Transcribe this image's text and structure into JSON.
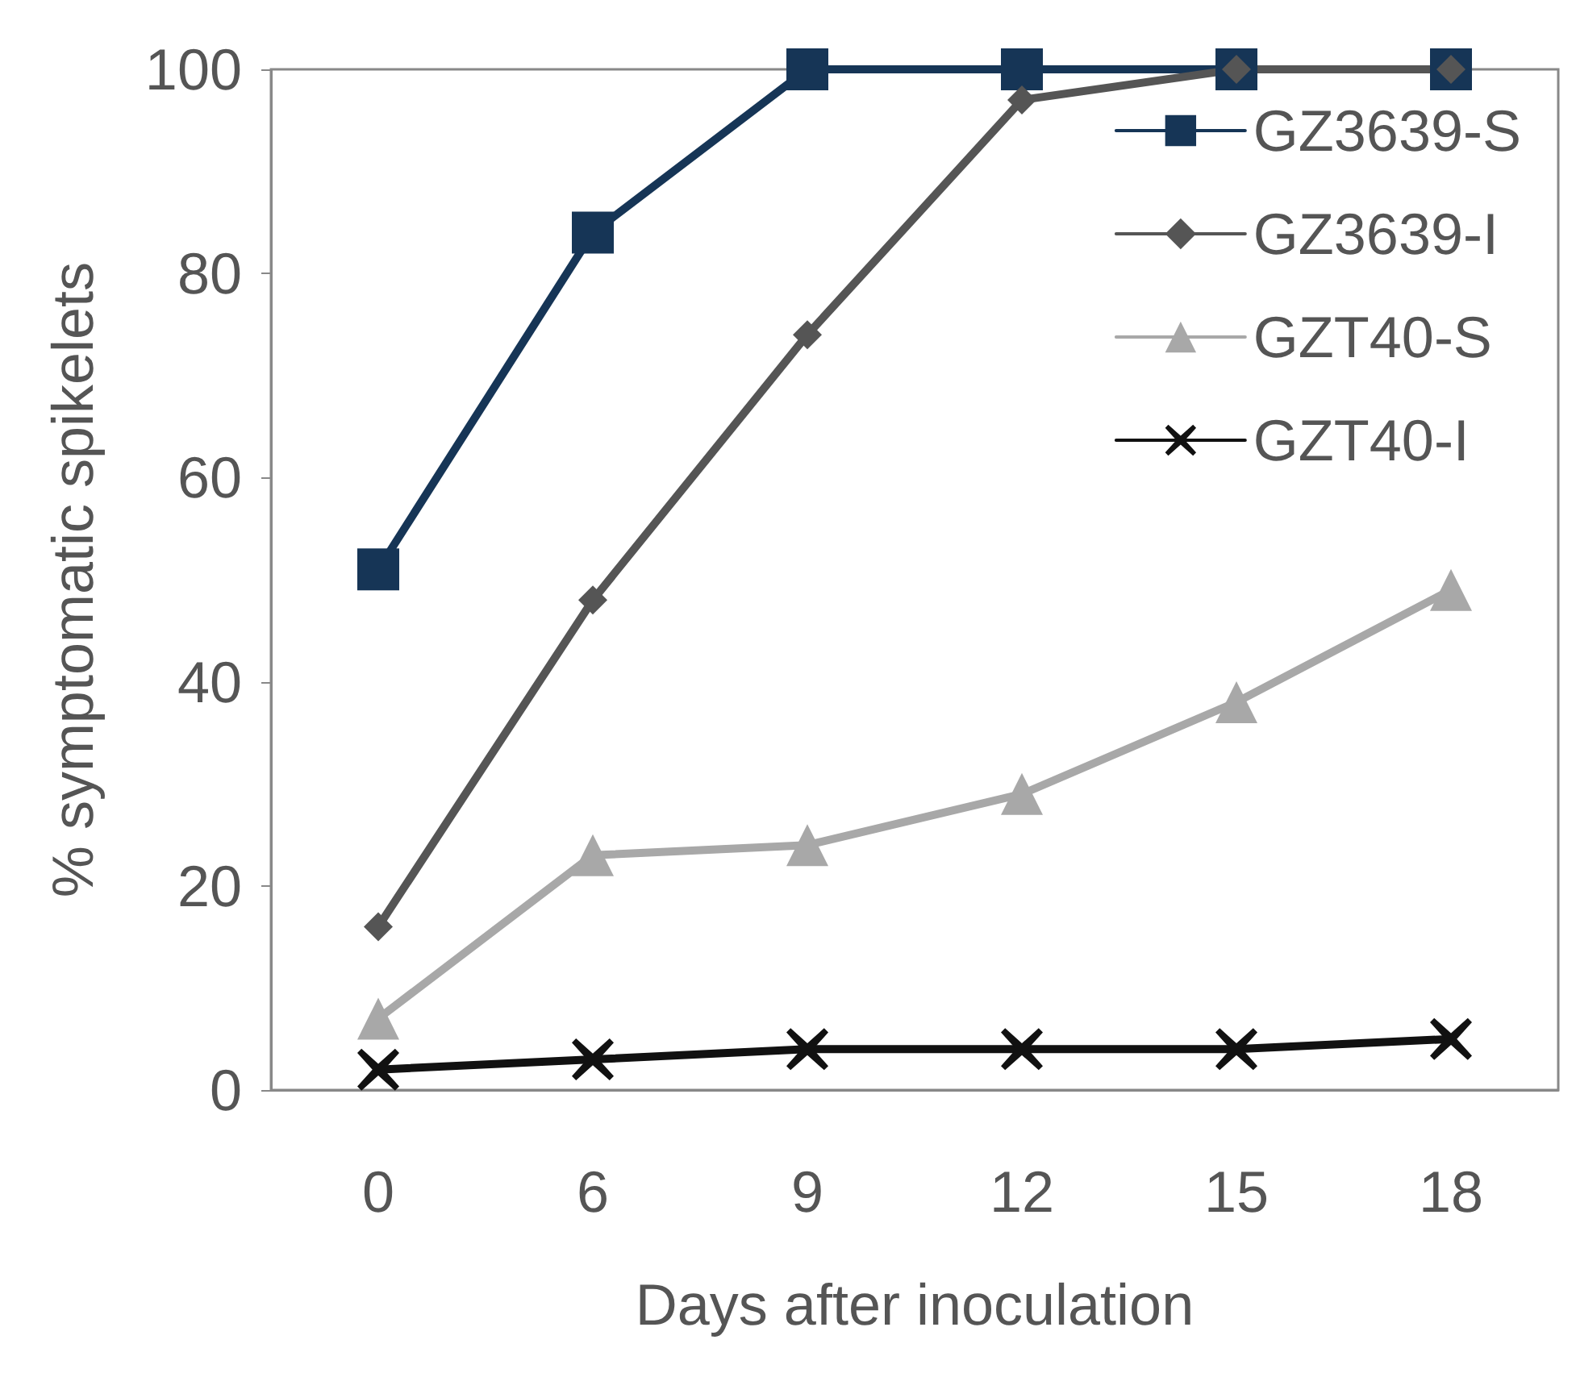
{
  "chart_data": {
    "type": "line",
    "xlabel": "Days after inoculation",
    "ylabel": "% symptomatic spikelets",
    "categories": [
      "0",
      "6",
      "9",
      "12",
      "15",
      "18"
    ],
    "ylim": [
      0,
      100
    ],
    "yticks": [
      0,
      20,
      40,
      60,
      80,
      100
    ],
    "grid": false,
    "legend": "top right",
    "line_style": "solid",
    "series": [
      {
        "name": "GZ3639-S",
        "color": "#163556",
        "marker": "square",
        "values": [
          51,
          84,
          100,
          100,
          100,
          100
        ]
      },
      {
        "name": "GZ3639-I",
        "color": "#555555",
        "marker": "diamond",
        "values": [
          16,
          48,
          74,
          97,
          100,
          100
        ]
      },
      {
        "name": "GZT40-S",
        "color": "#a8a8a8",
        "marker": "triangle",
        "values": [
          7,
          23,
          24,
          29,
          38,
          49
        ]
      },
      {
        "name": "GZT40-I",
        "color": "#111111",
        "marker": "cross",
        "values": [
          2,
          3,
          4,
          4,
          4,
          5
        ]
      }
    ]
  }
}
